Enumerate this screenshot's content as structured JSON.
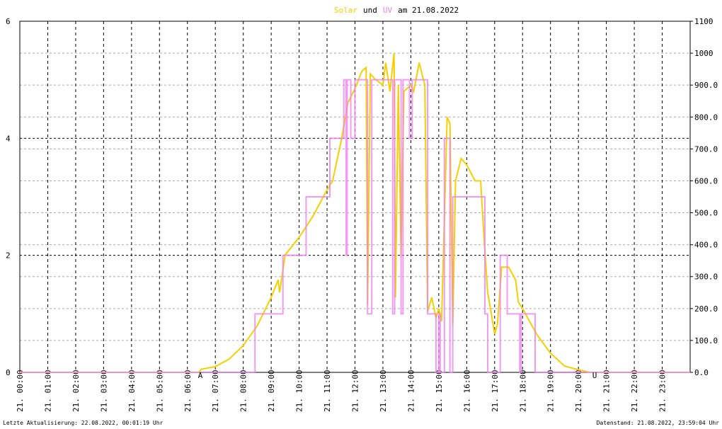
{
  "chart_data": {
    "type": "line",
    "title_words": [
      "und",
      "am 21.08.2022"
    ],
    "xlim": [
      0,
      24
    ],
    "xticks": [
      {
        "value": 0,
        "label": "21. 00:00"
      },
      {
        "value": 1,
        "label": "21. 01:00"
      },
      {
        "value": 2,
        "label": "21. 02:00"
      },
      {
        "value": 3,
        "label": "21. 03:00"
      },
      {
        "value": 4,
        "label": "21. 04:00"
      },
      {
        "value": 5,
        "label": "21. 05:00"
      },
      {
        "value": 6,
        "label": "21. 06:00"
      },
      {
        "value": 7,
        "label": "21. 07:00"
      },
      {
        "value": 8,
        "label": "21. 08:00"
      },
      {
        "value": 9,
        "label": "21. 09:00"
      },
      {
        "value": 10,
        "label": "21. 10:00"
      },
      {
        "value": 11,
        "label": "21. 11:00"
      },
      {
        "value": 12,
        "label": "21. 12:00"
      },
      {
        "value": 13,
        "label": "21. 13:00"
      },
      {
        "value": 14,
        "label": "21. 14:00"
      },
      {
        "value": 15,
        "label": "21. 15:00"
      },
      {
        "value": 16,
        "label": "21. 16:00"
      },
      {
        "value": 17,
        "label": "21. 17:00"
      },
      {
        "value": 18,
        "label": "21. 18:00"
      },
      {
        "value": 19,
        "label": "21. 19:00"
      },
      {
        "value": 20,
        "label": "21. 20:00"
      },
      {
        "value": 21,
        "label": "21. 21:00"
      },
      {
        "value": 22,
        "label": "21. 22:00"
      },
      {
        "value": 23,
        "label": "21. 23:00"
      }
    ],
    "ylim": [
      0,
      6
    ],
    "yticks": [
      0,
      2,
      4,
      6
    ],
    "y2lim": [
      0,
      1100
    ],
    "y2ticks": [
      {
        "value": 0,
        "label": "0.0"
      },
      {
        "value": 100,
        "label": "100.0"
      },
      {
        "value": 200,
        "label": "200.0"
      },
      {
        "value": 300,
        "label": "300.0"
      },
      {
        "value": 400,
        "label": "400.0"
      },
      {
        "value": 500,
        "label": "500.0"
      },
      {
        "value": 600,
        "label": "600.0"
      },
      {
        "value": 700,
        "label": "700.0"
      },
      {
        "value": 800,
        "label": "800.0"
      },
      {
        "value": 900,
        "label": "900.0"
      },
      1000,
      1100
    ],
    "grid": true,
    "series": [
      {
        "name": "Solar",
        "color": "#f5d000",
        "axis": "y2",
        "x": [
          0,
          6.4,
          6.5,
          7,
          7.5,
          8,
          8.5,
          9,
          9.25,
          9.3,
          9.5,
          10,
          10.5,
          11,
          11.2,
          11.5,
          11.75,
          12,
          12.25,
          12.4,
          12.45,
          12.55,
          12.7,
          13,
          13.1,
          13.25,
          13.4,
          13.45,
          13.55,
          13.65,
          13.75,
          14,
          14.1,
          14.3,
          14.5,
          14.6,
          14.75,
          14.9,
          15,
          15.1,
          15.3,
          15.4,
          15.5,
          15.6,
          15.8,
          16,
          16.3,
          16.5,
          16.6,
          16.75,
          16.85,
          17,
          17.1,
          17.25,
          17.5,
          17.75,
          17.85,
          18,
          18.5,
          19,
          19.5,
          20,
          20.4,
          24
        ],
        "values": [
          0,
          0,
          10,
          18,
          42,
          84,
          146,
          235,
          290,
          250,
          368,
          423,
          490,
          572,
          600,
          723,
          845,
          889,
          944,
          955,
          213,
          935,
          920,
          900,
          970,
          880,
          1000,
          235,
          900,
          360,
          880,
          900,
          880,
          970,
          900,
          190,
          235,
          170,
          200,
          160,
          800,
          780,
          150,
          600,
          670,
          650,
          600,
          600,
          450,
          250,
          200,
          120,
          150,
          330,
          330,
          290,
          220,
          200,
          120,
          60,
          20,
          8,
          0,
          0
        ]
      },
      {
        "name": "UV",
        "color": "#ee82ee",
        "axis": "y",
        "x": [
          0,
          8.42,
          8.42,
          9.42,
          9.42,
          10.25,
          10.25,
          11.1,
          11.1,
          11.6,
          11.6,
          11.68,
          11.68,
          11.72,
          11.72,
          11.85,
          11.85,
          12,
          12,
          12.45,
          12.45,
          12.6,
          12.6,
          13.35,
          13.35,
          13.42,
          13.42,
          13.65,
          13.65,
          13.72,
          13.72,
          13.95,
          13.95,
          14.05,
          14.05,
          14.6,
          14.6,
          14.9,
          14.9,
          15,
          15,
          15.05,
          15.05,
          15.2,
          15.2,
          15.4,
          15.4,
          15.5,
          15.5,
          16.65,
          16.65,
          16.75,
          16.75,
          17.2,
          17.2,
          17.45,
          17.45,
          17.9,
          17.9,
          17.95,
          17.95,
          18.45,
          18.45,
          24
        ],
        "values": [
          0,
          0,
          1,
          1,
          2,
          2,
          3,
          3,
          4,
          4,
          5,
          5,
          2,
          2,
          5,
          5,
          4,
          4,
          5,
          5,
          1,
          1,
          5,
          5,
          1,
          1,
          5,
          5,
          1,
          1,
          5,
          5,
          4,
          4,
          5,
          5,
          1,
          1,
          0,
          0,
          1,
          1,
          0,
          0,
          4,
          4,
          0,
          0,
          3,
          3,
          1,
          1,
          0,
          0,
          2,
          2,
          1,
          1,
          0,
          0,
          1,
          1,
          0,
          0
        ]
      }
    ],
    "annotations": [
      {
        "text": "A",
        "x": 6.46
      },
      {
        "text": "U",
        "x": 20.58
      }
    ],
    "footer_left": "Letzte Aktualisierung: 22.08.2022, 00:01:19 Uhr",
    "footer_right": "Datenstand: 21.08.2022, 23:59:04 Uhr"
  }
}
